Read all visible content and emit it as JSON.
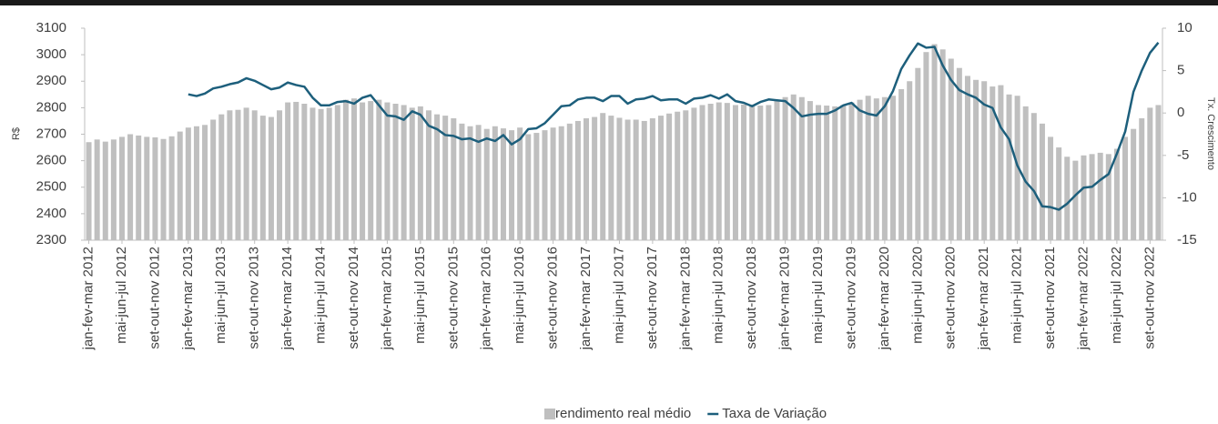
{
  "chart_data": {
    "type": "bar",
    "ylabel": "R$",
    "y2label": "Tx. Crescimento",
    "categories": [
      "jan-fev-mar 2012",
      null,
      null,
      null,
      "mai-jun-jul 2012",
      null,
      null,
      null,
      "set-out-nov 2012",
      null,
      null,
      null,
      "jan-fev-mar 2013",
      null,
      null,
      null,
      "mai-jun-jul 2013",
      null,
      null,
      null,
      "set-out-nov 2013",
      null,
      null,
      null,
      "jan-fev-mar 2014",
      null,
      null,
      null,
      "mai-jun-jul 2014",
      null,
      null,
      null,
      "set-out-nov 2014",
      null,
      null,
      null,
      "jan-fev-mar 2015",
      null,
      null,
      null,
      "mai-jun-jul 2015",
      null,
      null,
      null,
      "set-out-nov 2015",
      null,
      null,
      null,
      "jan-fev-mar 2016",
      null,
      null,
      null,
      "mai-jun-jul 2016",
      null,
      null,
      null,
      "set-out-nov 2016",
      null,
      null,
      null,
      "jan-fev-mar 2017",
      null,
      null,
      null,
      "mai-jun-jul 2017",
      null,
      null,
      null,
      "set-out-nov 2017",
      null,
      null,
      null,
      "jan-fev-mar 2018",
      null,
      null,
      null,
      "mai-jun-jul 2018",
      null,
      null,
      null,
      "set-out-nov 2018",
      null,
      null,
      null,
      "jan-fev-mar 2019",
      null,
      null,
      null,
      "mai-jun-jul 2019",
      null,
      null,
      null,
      "set-out-nov 2019",
      null,
      null,
      null,
      "jan-fev-mar 2020",
      null,
      null,
      null,
      "mai-jun-jul 2020",
      null,
      null,
      null,
      "set-out-nov 2020",
      null,
      null,
      null,
      "jan-fev-mar 2021",
      null,
      null,
      null,
      "mai-jun-jul 2021",
      null,
      null,
      null,
      "set-out-nov 2021",
      null,
      null,
      null,
      "jan-fev-mar 2022",
      null,
      null,
      null,
      "mai-jun-jul 2022",
      null,
      null,
      null,
      "set-out-nov 2022",
      null
    ],
    "series": [
      {
        "name": "rendimento real médio",
        "type": "bar",
        "color": "#bfbfbf",
        "values": [
          2670,
          2680,
          2672,
          2680,
          2690,
          2700,
          2695,
          2690,
          2688,
          2682,
          2692,
          2710,
          2725,
          2730,
          2735,
          2755,
          2775,
          2790,
          2792,
          2800,
          2790,
          2770,
          2765,
          2790,
          2820,
          2822,
          2815,
          2800,
          2795,
          2800,
          2810,
          2830,
          2835,
          2820,
          2825,
          2830,
          2820,
          2815,
          2810,
          2800,
          2805,
          2790,
          2775,
          2770,
          2760,
          2740,
          2730,
          2735,
          2720,
          2730,
          2722,
          2715,
          2725,
          2700,
          2705,
          2715,
          2725,
          2730,
          2740,
          2750,
          2760,
          2765,
          2780,
          2770,
          2762,
          2755,
          2755,
          2750,
          2760,
          2770,
          2778,
          2785,
          2790,
          2800,
          2810,
          2815,
          2820,
          2818,
          2810,
          2812,
          2812,
          2808,
          2810,
          2830,
          2840,
          2850,
          2840,
          2825,
          2810,
          2808,
          2805,
          2810,
          2820,
          2830,
          2845,
          2835,
          2840,
          2845,
          2870,
          2900,
          2950,
          3010,
          3040,
          3020,
          2985,
          2950,
          2920,
          2905,
          2900,
          2880,
          2885,
          2850,
          2845,
          2805,
          2780,
          2740,
          2690,
          2650,
          2615,
          2600,
          2620,
          2625,
          2630,
          2625,
          2645,
          2690,
          2720,
          2760,
          2800,
          2810
        ]
      },
      {
        "name": "Taxa de Variação",
        "type": "line",
        "axis": "y2",
        "color": "#1d5f7c",
        "values": [
          null,
          null,
          null,
          null,
          null,
          null,
          null,
          null,
          null,
          null,
          null,
          null,
          2.2,
          2.0,
          2.3,
          2.9,
          3.1,
          3.4,
          3.6,
          4.1,
          3.8,
          3.3,
          2.8,
          3.0,
          3.6,
          3.3,
          3.1,
          1.8,
          0.9,
          0.9,
          1.3,
          1.4,
          1.1,
          1.8,
          2.1,
          0.9,
          -0.3,
          -0.4,
          -0.8,
          0.2,
          -0.2,
          -1.5,
          -1.9,
          -2.6,
          -2.7,
          -3.1,
          -3.0,
          -3.4,
          -3.0,
          -3.3,
          -2.6,
          -3.7,
          -3.1,
          -1.9,
          -1.8,
          -1.2,
          -0.2,
          0.8,
          0.9,
          1.6,
          1.8,
          1.8,
          1.4,
          2.0,
          2.0,
          1.1,
          1.6,
          1.7,
          2.0,
          1.5,
          1.6,
          1.6,
          1.1,
          1.7,
          1.8,
          2.1,
          1.7,
          2.2,
          1.4,
          1.2,
          0.8,
          1.3,
          1.6,
          1.5,
          1.4,
          0.6,
          -0.4,
          -0.2,
          -0.1,
          -0.1,
          0.3,
          0.9,
          1.2,
          0.3,
          -0.1,
          -0.3,
          0.8,
          2.6,
          5.2,
          6.8,
          8.2,
          7.7,
          7.8,
          5.6,
          3.9,
          2.7,
          2.2,
          1.8,
          1.0,
          0.6,
          -1.7,
          -3.1,
          -6.2,
          -8.1,
          -9.2,
          -11.0,
          -11.1,
          -11.4,
          -10.7,
          -9.7,
          -8.8,
          -8.7,
          -7.9,
          -7.2,
          -4.8,
          -2.2,
          2.5,
          5.0,
          7.1,
          8.3
        ]
      }
    ],
    "ylim": [
      2300,
      3100
    ],
    "yticks": [
      2300,
      2400,
      2500,
      2600,
      2700,
      2800,
      2900,
      3000,
      3100
    ],
    "y2lim": [
      -15,
      10
    ],
    "y2ticks": [
      -15,
      -10,
      -5,
      0,
      5,
      10
    ]
  }
}
